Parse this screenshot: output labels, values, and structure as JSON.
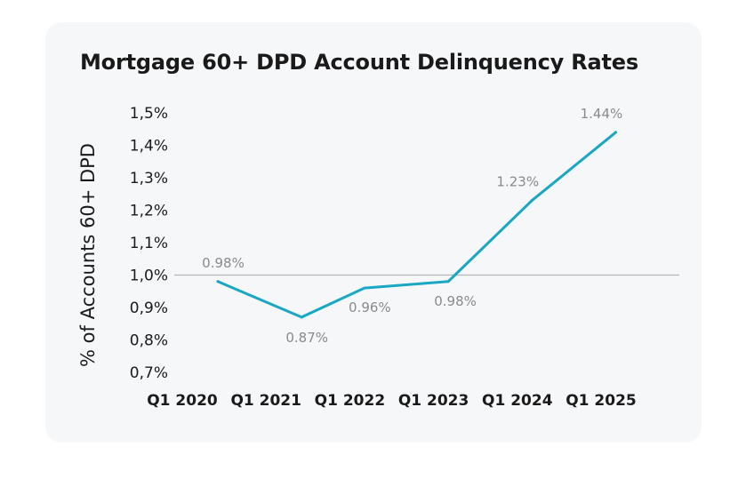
{
  "chart_data": {
    "type": "line",
    "title": "Mortgage 60+ DPD Account Delinquency Rates",
    "xlabel": "",
    "ylabel": "% of Accounts 60+ DPD",
    "x": [
      "Q1 2020",
      "Q1 2021",
      "Q1 2022",
      "Q1 2023",
      "Q1 2024",
      "Q1 2025"
    ],
    "points": [
      {
        "t": 0.0,
        "value": 0.98,
        "label": "0.98%"
      },
      {
        "t": 1.0,
        "value": 0.87,
        "label": "0.87%"
      },
      {
        "t": 1.75,
        "value": 0.96,
        "label": "0.96%"
      },
      {
        "t": 2.75,
        "value": 0.98,
        "label": "0.98%"
      },
      {
        "t": 3.75,
        "value": 1.23,
        "label": "1.23%"
      },
      {
        "t": 4.75,
        "value": 1.44,
        "label": "1.44%"
      }
    ],
    "yticks": [
      {
        "value": 0.7,
        "label": "0,7%"
      },
      {
        "value": 0.8,
        "label": "0,8%"
      },
      {
        "value": 0.9,
        "label": "0,9%"
      },
      {
        "value": 1.0,
        "label": "1,0%"
      },
      {
        "value": 1.1,
        "label": "1,1%"
      },
      {
        "value": 1.2,
        "label": "1,2%"
      },
      {
        "value": 1.3,
        "label": "1,3%"
      },
      {
        "value": 1.4,
        "label": "1,4%"
      },
      {
        "value": 1.5,
        "label": "1,5%"
      }
    ],
    "ylim": [
      0.7,
      1.5
    ],
    "reference_line": 1.0,
    "grid": false,
    "colors": {
      "line": "#1aa7c4",
      "reference": "#b5b5b5",
      "data_label": "#8a8a8a",
      "card_background": "#f6f7f9"
    }
  }
}
